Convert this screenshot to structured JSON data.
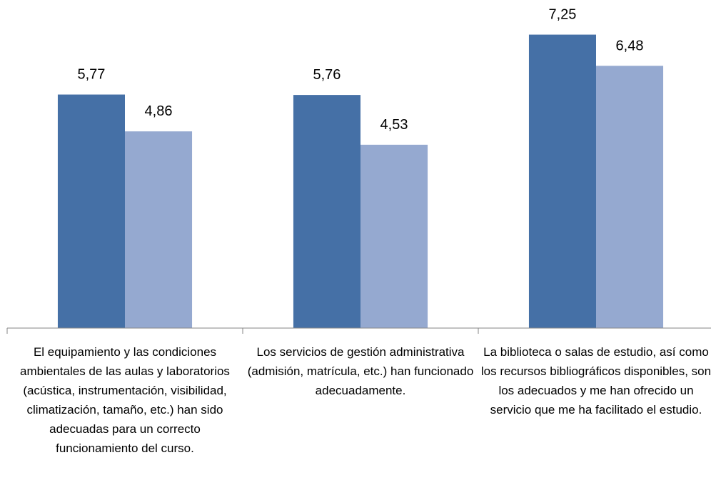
{
  "chart_data": {
    "type": "bar",
    "categories": [
      "El equipamiento y las condiciones ambientales de las aulas y laboratorios (acústica, instrumentación, visibilidad, climatización, tamaño, etc.) han sido adecuadas para un correcto funcionamiento del curso.",
      "Los servicios de gestión administrativa (admisión, matrícula, etc.) han funcionado adecuadamente.",
      "La biblioteca o salas de estudio, así como los recursos bibliográficos disponibles, son los adecuados y me han ofrecido un servicio que me ha facilitado el estudio."
    ],
    "series": [
      {
        "color": "#4570a6",
        "values": [
          5.77,
          5.76,
          7.25
        ],
        "value_labels": [
          "5,77",
          "5,76",
          "7,25"
        ]
      },
      {
        "color": "#95a9d0",
        "values": [
          4.86,
          4.53,
          6.48
        ],
        "value_labels": [
          "4,86",
          "4,53",
          "6,48"
        ]
      }
    ],
    "ylim": [
      0,
      8
    ],
    "grid": false
  }
}
